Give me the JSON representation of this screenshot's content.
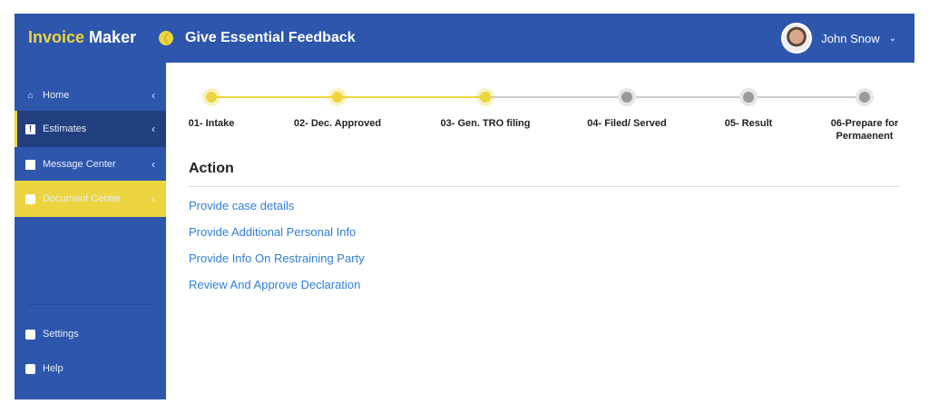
{
  "header": {
    "logo_part1": "Invoice",
    "logo_part2": "Maker",
    "title": "Give Essential Feedback",
    "back_icon": "chevron-left-icon",
    "user_name": "John Snow"
  },
  "sidebar": {
    "items": [
      {
        "label": "Home",
        "icon": "home-icon"
      },
      {
        "label": "Estimates",
        "icon": "alert-message-icon",
        "active": true
      },
      {
        "label": "Message Center",
        "icon": "chat-icon"
      },
      {
        "label": "Document Center",
        "icon": "document-icon",
        "highlighted": true
      }
    ],
    "bottom": [
      {
        "label": "Settings",
        "icon": "clipboard-icon"
      },
      {
        "label": "Help",
        "icon": "clipboard-icon"
      }
    ]
  },
  "steps": [
    {
      "label": "01- Intake",
      "done": true
    },
    {
      "label": "02- Dec. Approved",
      "done": true
    },
    {
      "label": "03- Gen. TRO filing",
      "done": true
    },
    {
      "label": "04- Filed/ Served",
      "done": false
    },
    {
      "label": "05- Result",
      "done": false
    },
    {
      "label": "06-Prepare for Permaenent",
      "done": false
    }
  ],
  "colors": {
    "primary": "#2d56ac",
    "accent": "#ecd53f",
    "link": "#2d7fd6",
    "pending": "#9a9a9a"
  },
  "main": {
    "heading": "Action",
    "links": [
      "Provide case details",
      "Provide Additional Personal Info",
      "Provide Info On Restraining Party",
      "Review And Approve Declaration"
    ]
  }
}
